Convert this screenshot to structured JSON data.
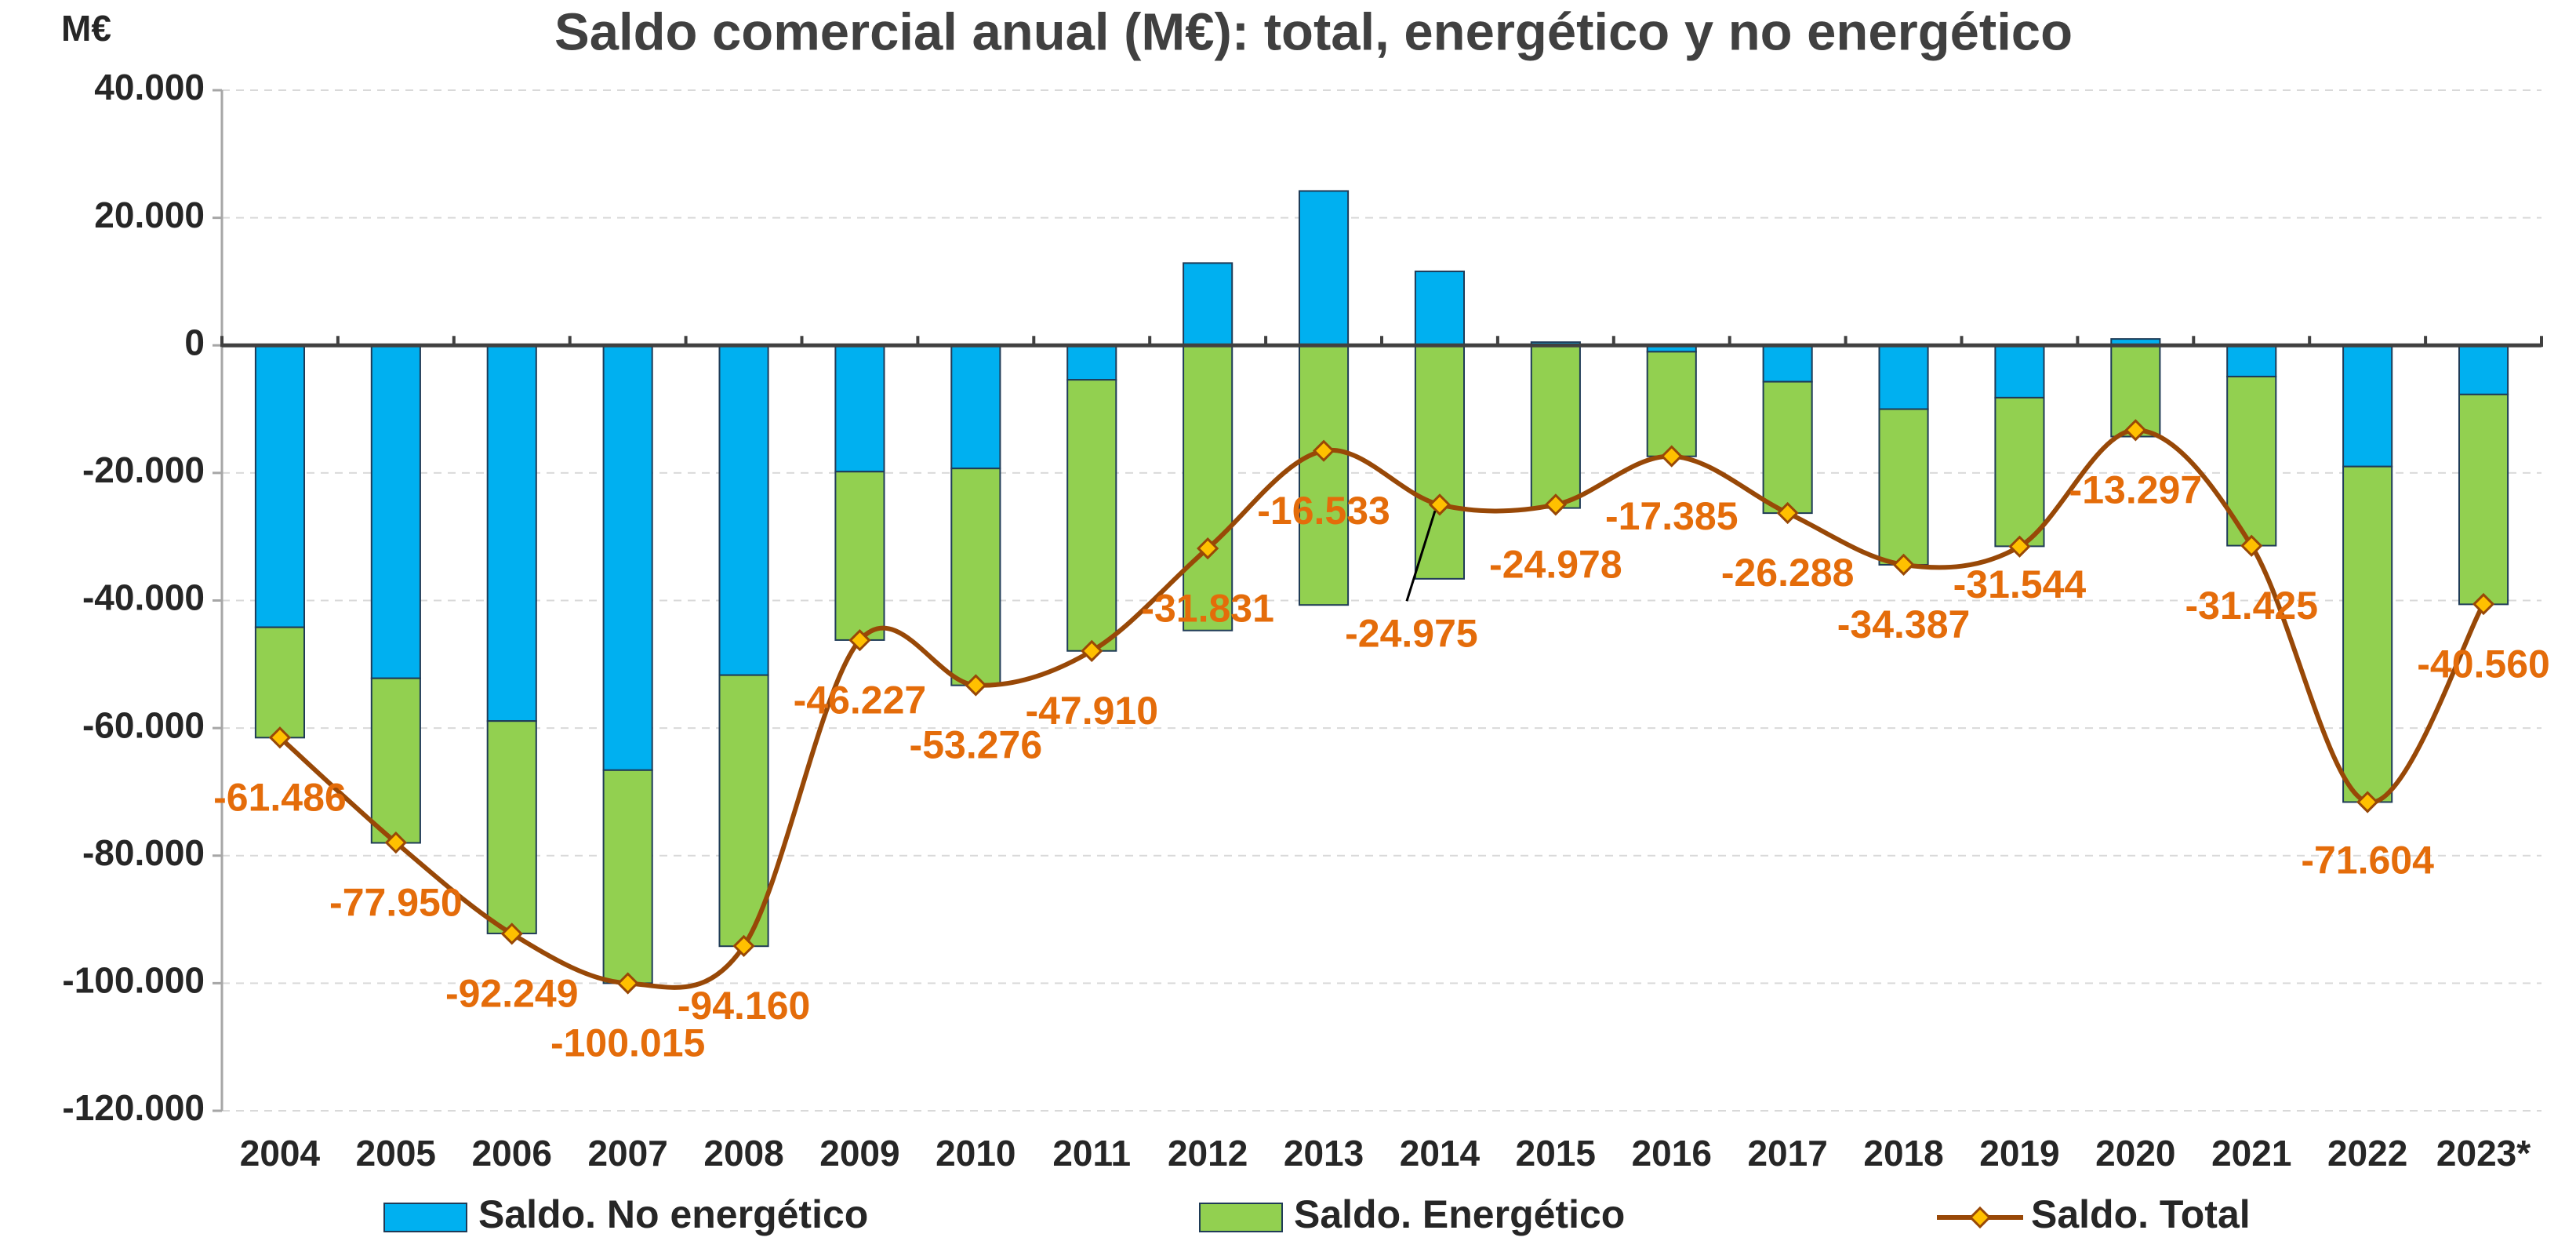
{
  "chart_data": {
    "type": "bar",
    "title": "Saldo comercial anual (M€): total, energético y no energético",
    "y_label": "M€",
    "categories": [
      "2004",
      "2005",
      "2006",
      "2007",
      "2008",
      "2009",
      "2010",
      "2011",
      "2012",
      "2013",
      "2014",
      "2015",
      "2016",
      "2017",
      "2018",
      "2019",
      "2020",
      "2021",
      "2022",
      "2023*"
    ],
    "series": [
      {
        "name": "Saldo. No energético",
        "color": "#00b0f0",
        "type": "bar",
        "values": [
          -44200,
          -52200,
          -58900,
          -66600,
          -51700,
          -19800,
          -19300,
          -5400,
          12900,
          24200,
          11600,
          500,
          -1000,
          -5700,
          -10000,
          -8200,
          1000,
          -4900,
          -19000,
          -7700
        ]
      },
      {
        "name": "Saldo. Energético",
        "color": "#92d050",
        "type": "bar",
        "values": [
          -17300,
          -25800,
          -33300,
          -33400,
          -42500,
          -26400,
          -34000,
          -42500,
          -44700,
          -40700,
          -36600,
          -25500,
          -16400,
          -20600,
          -24400,
          -23300,
          -14300,
          -26500,
          -52600,
          -32900
        ]
      },
      {
        "name": "Saldo. Total",
        "color": "#984807",
        "marker_color": "#ffc000",
        "type": "line",
        "values": [
          -61486,
          -77950,
          -92249,
          -100015,
          -94160,
          -46227,
          -53276,
          -47910,
          -31831,
          -16533,
          -24975,
          -24978,
          -17385,
          -26288,
          -34387,
          -31544,
          -13297,
          -31425,
          -71604,
          -40560
        ],
        "value_labels": [
          "-61.486",
          "-77.950",
          "-92.249",
          "-100.015",
          "-94.160",
          "-46.227",
          "-53.276",
          "-47.910",
          "-31.831",
          "-16.533",
          "-24.975",
          "-24.978",
          "-17.385",
          "-26.288",
          "-34.387",
          "-31.544",
          "-13.297",
          "-31.425",
          "-71.604",
          "-40.560"
        ]
      }
    ],
    "ylim": [
      -120000,
      40000
    ],
    "yticks": [
      {
        "value": -120000,
        "label": "-120.000"
      },
      {
        "value": -100000,
        "label": "-100.000"
      },
      {
        "value": -80000,
        "label": "-80.000"
      },
      {
        "value": -60000,
        "label": "-60.000"
      },
      {
        "value": -40000,
        "label": "-40.000"
      },
      {
        "value": -20000,
        "label": "-20.000"
      },
      0,
      {
        "value": 20000,
        "label": "20.000"
      },
      {
        "value": 40000,
        "label": "40.000"
      }
    ],
    "grid": true,
    "legend": "bottom"
  }
}
